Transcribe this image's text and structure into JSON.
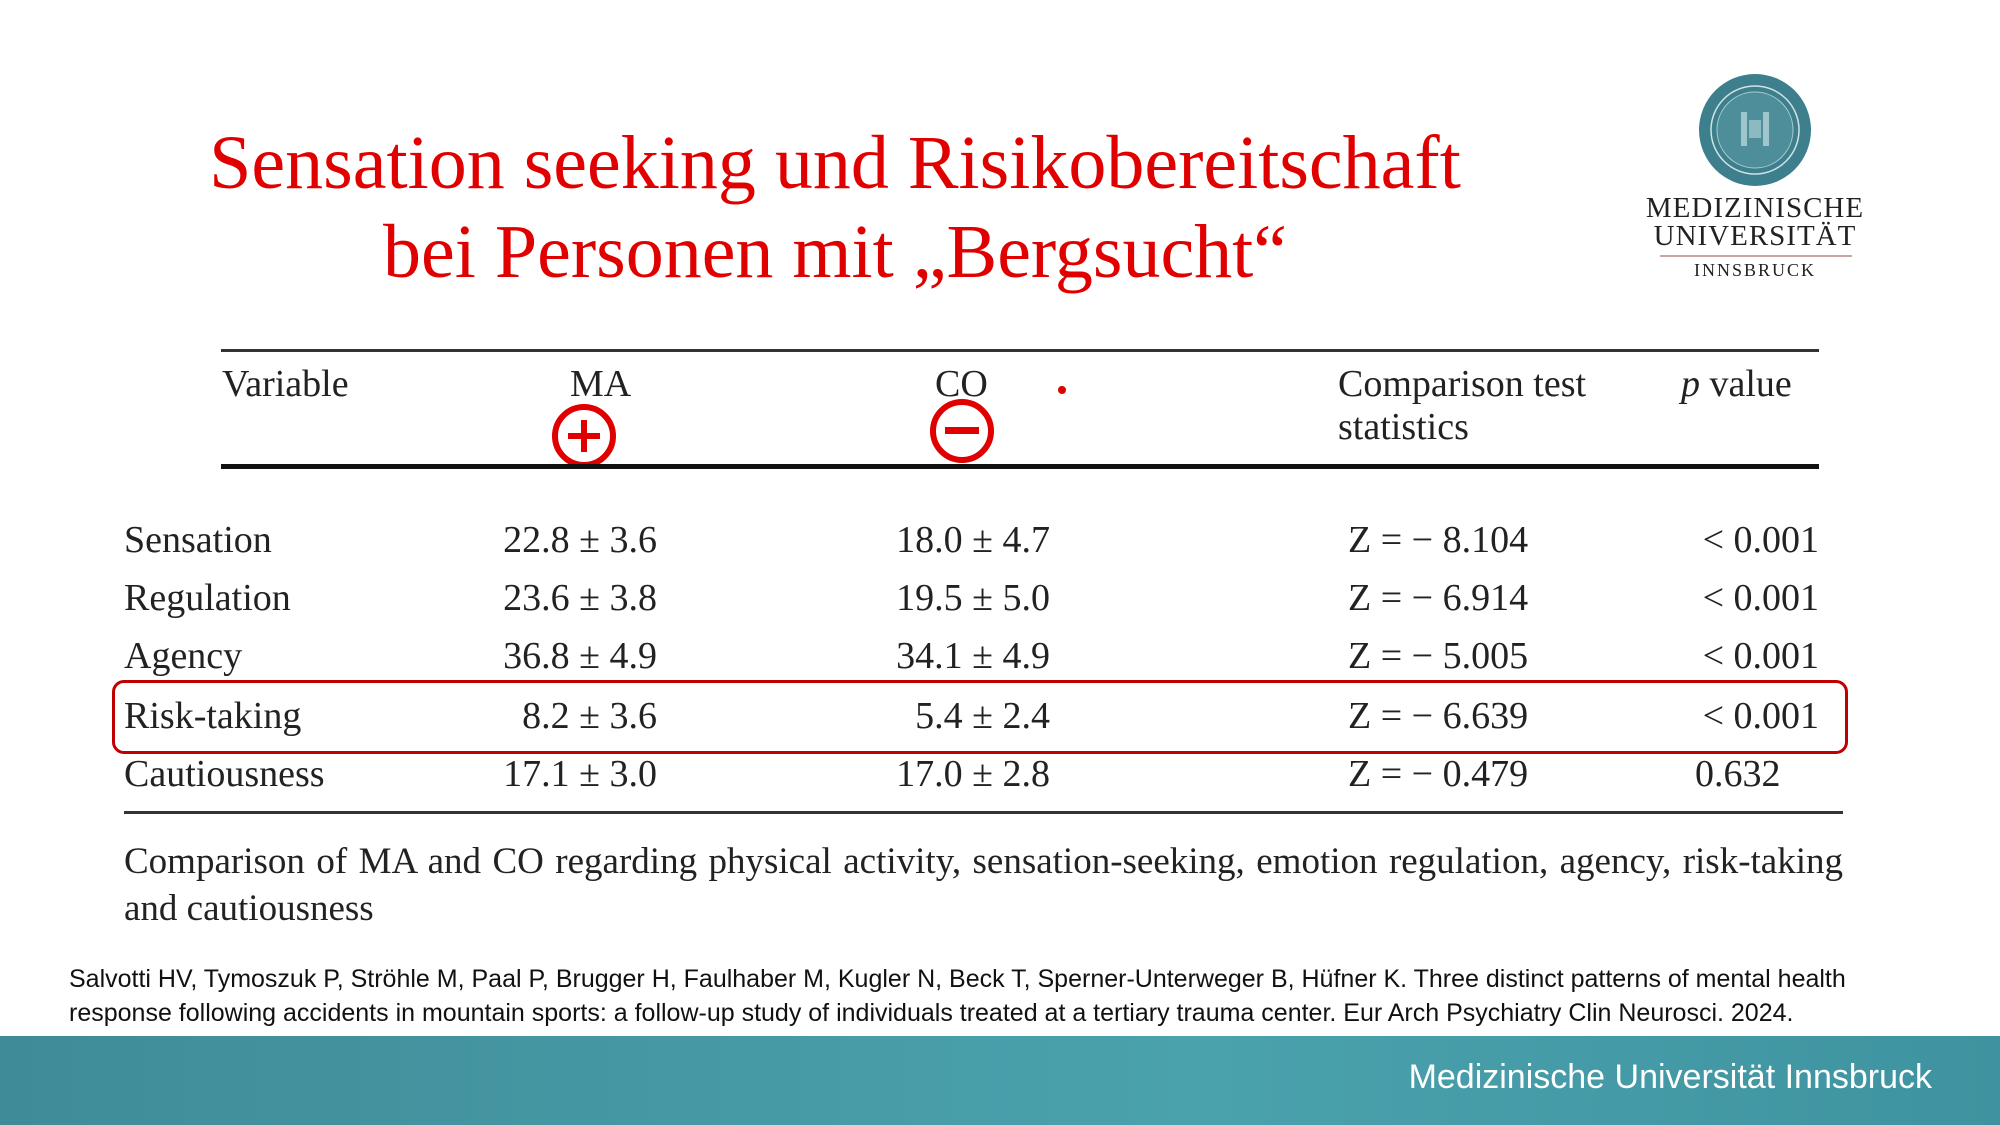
{
  "title": {
    "line1": "Sensation seeking und Risikobereitschaft",
    "line2": "bei Personen mit „Bergsucht“"
  },
  "logo": {
    "line1": "MEDIZINISCHE",
    "line2": "UNIVERSITÄT",
    "line3": "INNSBRUCK",
    "seal_text": "MEDIZINISCHE UNIVERSITÄT INNSBRUCK",
    "seal_color": "#3d7f8c"
  },
  "table": {
    "headers": {
      "variable": "Variable",
      "ma": "MA",
      "co": "CO",
      "comparison_line1": "Comparison test",
      "comparison_line2": "statistics",
      "p_italic": "p",
      "p_rest": " value"
    },
    "annotations": {
      "ma_icon": "plus-circle-icon",
      "co_icon": "minus-circle-icon",
      "color": "#e00000"
    },
    "rows": [
      {
        "variable": "Sensation",
        "ma": "22.8 ± 3.6",
        "co": "18.0 ± 4.7",
        "stat": "Z = − 8.104",
        "p": "< 0.001"
      },
      {
        "variable": "Regulation",
        "ma": "23.6 ± 3.8",
        "co": "19.5 ± 5.0",
        "stat": "Z = − 6.914",
        "p": "< 0.001"
      },
      {
        "variable": "Agency",
        "ma": "36.8 ± 4.9",
        "co": "34.1 ± 4.9",
        "stat": "Z = − 5.005",
        "p": "< 0.001"
      },
      {
        "variable": "Risk-taking",
        "ma": "8.2 ± 3.6",
        "co": "5.4 ± 2.4",
        "stat": "Z = − 6.639",
        "p": "< 0.001",
        "highlighted": true
      },
      {
        "variable": "Cautiousness",
        "ma": "17.1 ± 3.0",
        "co": "17.0 ± 2.8",
        "stat": "Z = − 0.479",
        "p": "0.632"
      }
    ],
    "highlight_color": "#c00000"
  },
  "caption": "Comparison of MA and CO regarding physical activity, sensation-seeking, emotion regulation, agency, risk-taking and cautiousness",
  "citation": {
    "line1": "Salvotti HV, Tymoszuk P, Ströhle M, Paal P, Brugger H, Faulhaber M, Kugler N, Beck T, Sperner-Unterweger B, Hüfner K. Three distinct patterns of mental health",
    "line2": "response following accidents in mountain sports: a follow-up study of individuals treated at a tertiary trauma center. Eur Arch Psychiatry Clin Neurosci. 2024."
  },
  "footer": {
    "text": "Medizinische Universität Innsbruck",
    "color": "#4aa2ad"
  }
}
